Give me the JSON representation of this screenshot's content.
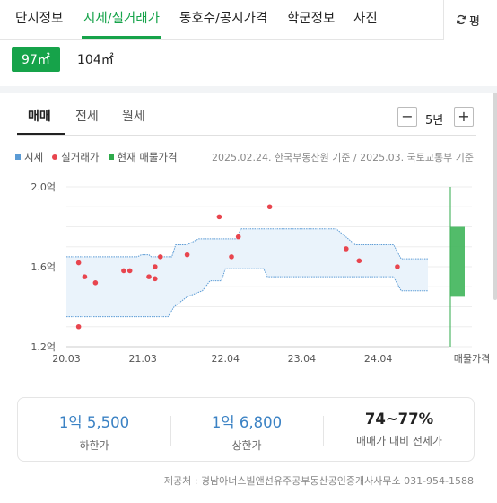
{
  "top_tabs": [
    {
      "label": "단지정보",
      "active": false
    },
    {
      "label": "시세/실거래가",
      "active": true
    },
    {
      "label": "동호수/공시가격",
      "active": false
    },
    {
      "label": "학군정보",
      "active": false
    },
    {
      "label": "사진",
      "active": false
    }
  ],
  "refresh_label": "평",
  "sizes": [
    {
      "label": "97㎡",
      "active": true
    },
    {
      "label": "104㎡",
      "active": false
    }
  ],
  "sub_tabs": [
    {
      "label": "매매",
      "active": true
    },
    {
      "label": "전세",
      "active": false
    },
    {
      "label": "월세",
      "active": false
    }
  ],
  "period": {
    "minus": "−",
    "value": "5년",
    "plus": "+"
  },
  "legend": [
    {
      "label": "시세",
      "color": "#5b9bd5",
      "shape": "square"
    },
    {
      "label": "실거래가",
      "color": "#e8454e",
      "shape": "dot"
    },
    {
      "label": "현재 매물가격",
      "color": "#2eaa4a",
      "shape": "square"
    }
  ],
  "source": "2025.02.24. 한국부동산원 기준 / 2025.03. 국토교통부 기준",
  "chart_data": {
    "type": "line",
    "y_ticks": [
      {
        "value": 2.0,
        "label": "2.0억"
      },
      {
        "value": 1.6,
        "label": "1.6억"
      },
      {
        "value": 1.2,
        "label": "1.2억"
      }
    ],
    "ylim": [
      1.2,
      2.0
    ],
    "x_ticks": [
      {
        "value": 2020.17,
        "label": "20.03"
      },
      {
        "value": 2021.17,
        "label": "21.03"
      },
      {
        "value": 2022.25,
        "label": "22.04"
      },
      {
        "value": 2023.25,
        "label": "23.04"
      },
      {
        "value": 2024.25,
        "label": "24.04"
      }
    ],
    "xlim": [
      2020.17,
      2025.17
    ],
    "upper_band": [
      [
        2020.17,
        1.65
      ],
      [
        2021.1,
        1.65
      ],
      [
        2021.15,
        1.66
      ],
      [
        2021.25,
        1.66
      ],
      [
        2021.28,
        1.65
      ],
      [
        2021.55,
        1.65
      ],
      [
        2021.6,
        1.71
      ],
      [
        2021.75,
        1.71
      ],
      [
        2021.9,
        1.74
      ],
      [
        2022.4,
        1.74
      ],
      [
        2022.45,
        1.79
      ],
      [
        2023.7,
        1.79
      ],
      [
        2023.95,
        1.71
      ],
      [
        2024.45,
        1.71
      ],
      [
        2024.55,
        1.64
      ],
      [
        2024.9,
        1.64
      ]
    ],
    "lower_band": [
      [
        2020.17,
        1.35
      ],
      [
        2021.5,
        1.35
      ],
      [
        2021.58,
        1.4
      ],
      [
        2021.75,
        1.45
      ],
      [
        2021.95,
        1.48
      ],
      [
        2022.05,
        1.53
      ],
      [
        2022.2,
        1.53
      ],
      [
        2022.25,
        1.59
      ],
      [
        2022.75,
        1.59
      ],
      [
        2022.8,
        1.55
      ],
      [
        2024.45,
        1.55
      ],
      [
        2024.55,
        1.48
      ],
      [
        2024.9,
        1.48
      ]
    ],
    "transactions": [
      [
        2020.33,
        1.62
      ],
      [
        2020.41,
        1.55
      ],
      [
        2020.55,
        1.52
      ],
      [
        2020.33,
        1.3
      ],
      [
        2021.0,
        1.58
      ],
      [
        2020.92,
        1.58
      ],
      [
        2021.25,
        1.55
      ],
      [
        2021.33,
        1.54
      ],
      [
        2021.33,
        1.6
      ],
      [
        2021.4,
        1.65
      ],
      [
        2021.75,
        1.66
      ],
      [
        2022.17,
        1.85
      ],
      [
        2022.33,
        1.65
      ],
      [
        2022.42,
        1.75
      ],
      [
        2022.83,
        1.9
      ],
      [
        2023.83,
        1.69
      ],
      [
        2024.0,
        1.63
      ],
      [
        2024.5,
        1.6
      ]
    ],
    "current_listing": {
      "label": "매물가격",
      "min": 1.45,
      "max": 1.8
    }
  },
  "stats": [
    {
      "value": "1억 5,500",
      "label": "하한가"
    },
    {
      "value": "1억 6,800",
      "label": "상한가"
    },
    {
      "value": "74~77%",
      "label": "매매가 대비 전세가"
    }
  ],
  "footer": "제공처 : 경남아너스빌앤선유주공부동산공인중개사사무소 031-954-1588"
}
